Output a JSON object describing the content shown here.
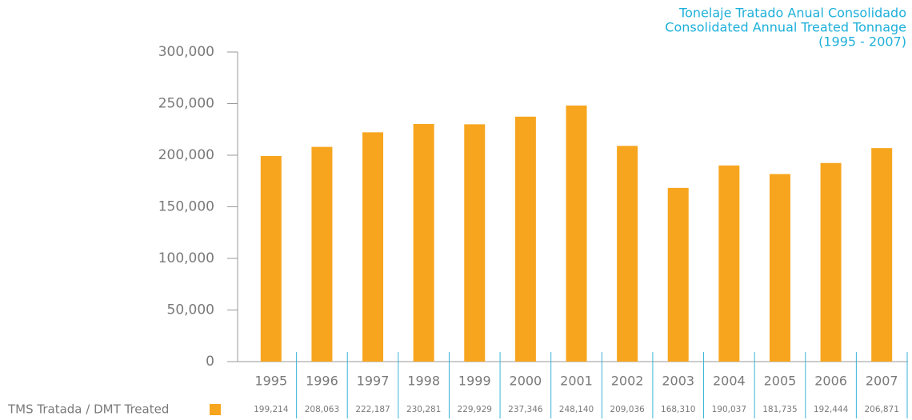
{
  "chart_data": {
    "type": "bar",
    "title": "Tonelaje Tratado Anual Consolidado",
    "subtitle": "Consolidated Annual Treated Tonnage",
    "period": "(1995 - 2007)",
    "categories": [
      "1995",
      "1996",
      "1997",
      "1998",
      "1999",
      "2000",
      "2001",
      "2002",
      "2003",
      "2004",
      "2005",
      "2006",
      "2007"
    ],
    "series": [
      {
        "name": "TMS Tratada / DMT Treated",
        "color": "#f7a51e",
        "values": [
          199214,
          208063,
          222187,
          230281,
          229929,
          237346,
          248140,
          209036,
          168310,
          190037,
          181735,
          192444,
          206871
        ],
        "value_labels": [
          "199,214",
          "208,063",
          "222,187",
          "230,281",
          "229,929",
          "237,346",
          "248,140",
          "209,036",
          "168,310",
          "190,037",
          "181,735",
          "192,444",
          "206,871"
        ]
      }
    ],
    "ylim": [
      0,
      300000
    ],
    "yticks": [
      0,
      {
        "value": 50000,
        "label": "50,000"
      },
      {
        "value": 100000,
        "label": "100,000"
      },
      {
        "value": 150000,
        "label": "150,000"
      },
      {
        "value": 200000,
        "label": "200,000"
      },
      {
        "value": 250000,
        "label": "250,000"
      },
      {
        "value": 300000,
        "label": "300,000"
      }
    ]
  }
}
